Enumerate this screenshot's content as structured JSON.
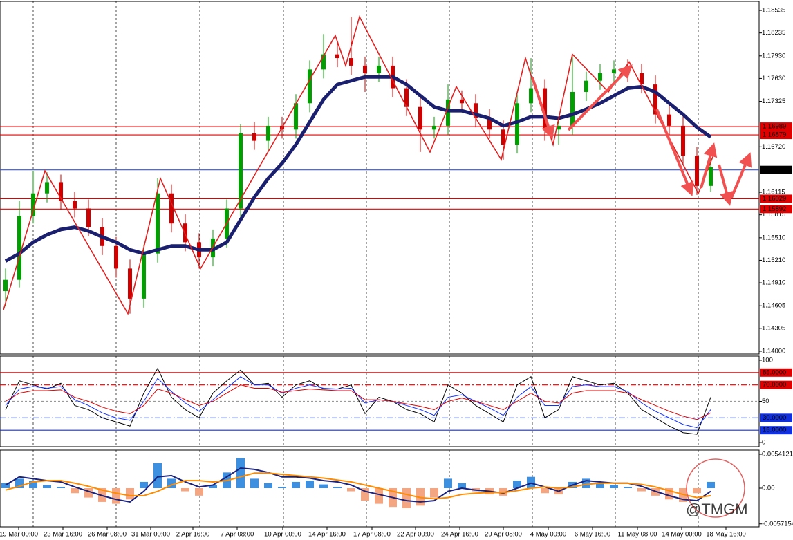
{
  "chart_data": [
    {
      "type": "candlestick",
      "ylim": [
        1.13963,
        1.18655
      ],
      "yticks": [
        1.18535,
        1.18235,
        {
          "value": 1.1793,
          "label": "1.17930"
        },
        {
          "value": 1.1763,
          "label": "1.17630"
        },
        1.17325,
        {
          "value": 1.1672,
          "label": "1.16720"
        },
        1.16115,
        1.15815,
        {
          "value": 1.1551,
          "label": "1.15510"
        },
        {
          "value": 1.1521,
          "label": "1.15210"
        },
        {
          "value": 1.1491,
          "label": "1.14910"
        },
        1.14605,
        1.14305,
        {
          "value": 1.14,
          "label": "1.14000"
        }
      ],
      "up_color": "#00a000",
      "down_color": "#d00000",
      "ohlc": [
        [
          1.148,
          1.151,
          1.146,
          1.1495
        ],
        [
          1.1495,
          1.16,
          1.1485,
          1.158
        ],
        [
          1.158,
          1.164,
          1.157,
          1.161
        ],
        [
          1.161,
          1.1638,
          1.1598,
          1.1625
        ],
        [
          1.1625,
          1.1635,
          1.1588,
          1.16
        ],
        [
          1.16,
          1.1612,
          1.1578,
          1.159
        ],
        [
          1.159,
          1.1602,
          1.1553,
          1.1565
        ],
        [
          1.1565,
          1.1577,
          1.1528,
          1.154
        ],
        [
          1.154,
          1.1552,
          1.1498,
          1.151
        ],
        [
          1.151,
          1.1522,
          1.145,
          1.147
        ],
        [
          1.147,
          1.1542,
          1.1458,
          1.153
        ],
        [
          1.153,
          1.163,
          1.1518,
          1.161
        ],
        [
          1.161,
          1.1622,
          1.1558,
          1.157
        ],
        [
          1.157,
          1.1582,
          1.1533,
          1.1545
        ],
        [
          1.1545,
          1.1557,
          1.151,
          1.1525
        ],
        [
          1.1525,
          1.1562,
          1.1513,
          1.155
        ],
        [
          1.155,
          1.1602,
          1.1538,
          1.159
        ],
        [
          1.159,
          1.1702,
          1.1578,
          1.169
        ],
        [
          1.169,
          1.1705,
          1.1668,
          1.168
        ],
        [
          1.168,
          1.1712,
          1.1668,
          1.17
        ],
        [
          1.17,
          1.1712,
          1.1683,
          1.1695
        ],
        [
          1.1695,
          1.1742,
          1.1683,
          1.173
        ],
        [
          1.173,
          1.1787,
          1.1718,
          1.1775
        ],
        [
          1.1775,
          1.1822,
          1.1763,
          1.1795
        ],
        [
          1.1795,
          1.181,
          1.1778,
          1.179
        ],
        [
          1.179,
          1.1845,
          1.1768,
          1.178
        ],
        [
          1.178,
          1.1792,
          1.1745,
          1.177
        ],
        [
          1.177,
          1.1792,
          1.1758,
          1.178
        ],
        [
          1.178,
          1.1792,
          1.1738,
          1.175
        ],
        [
          1.175,
          1.1762,
          1.1713,
          1.1725
        ],
        [
          1.1725,
          1.1737,
          1.1665,
          1.1695
        ],
        [
          1.1695,
          1.1712,
          1.1683,
          1.17
        ],
        [
          1.17,
          1.1755,
          1.1688,
          1.1735
        ],
        [
          1.1735,
          1.1747,
          1.1718,
          1.173
        ],
        [
          1.173,
          1.1742,
          1.1698,
          1.171
        ],
        [
          1.171,
          1.1722,
          1.1683,
          1.1695
        ],
        [
          1.1695,
          1.1707,
          1.1655,
          1.1675
        ],
        [
          1.1675,
          1.1742,
          1.1663,
          1.173
        ],
        [
          1.173,
          1.179,
          1.1718,
          1.175
        ],
        [
          1.175,
          1.1762,
          1.168,
          1.1695
        ],
        [
          1.1695,
          1.1712,
          1.1675,
          1.17
        ],
        [
          1.17,
          1.1795,
          1.1688,
          1.1745
        ],
        [
          1.1745,
          1.1772,
          1.1733,
          1.176
        ],
        [
          1.176,
          1.1782,
          1.1748,
          1.177
        ],
        [
          1.177,
          1.1787,
          1.1758,
          1.1775
        ],
        [
          1.1775,
          1.1788,
          1.1758,
          1.177
        ],
        [
          1.177,
          1.1782,
          1.1743,
          1.1755
        ],
        [
          1.1755,
          1.1767,
          1.1703,
          1.1715
        ],
        [
          1.1715,
          1.1727,
          1.1688,
          1.17
        ],
        [
          1.17,
          1.1712,
          1.1648,
          1.166
        ],
        [
          1.166,
          1.1672,
          1.1608,
          1.162
        ],
        [
          1.162,
          1.1668,
          1.1612,
          1.1645
        ]
      ],
      "series": [
        {
          "color": "#1a1f6e",
          "values": [
            1.152,
            1.153,
            1.1545,
            1.1555,
            1.1562,
            1.1565,
            1.156,
            1.1552,
            1.1545,
            1.1535,
            1.153,
            1.1535,
            1.154,
            1.154,
            1.1535,
            1.1535,
            1.1545,
            1.1575,
            1.1605,
            1.163,
            1.165,
            1.1675,
            1.1705,
            1.1735,
            1.1755,
            1.176,
            1.1765,
            1.1765,
            1.1765,
            1.1755,
            1.174,
            1.1725,
            1.172,
            1.172,
            1.1715,
            1.171,
            1.17,
            1.1705,
            1.1712,
            1.1712,
            1.171,
            1.1715,
            1.1722,
            1.173,
            1.174,
            1.175,
            1.1752,
            1.1745,
            1.173,
            1.1715,
            1.1698,
            1.1685
          ]
        }
      ],
      "zigzag": {
        "color": "#e02020",
        "x": [
          -0.15,
          2.85,
          8.85,
          11.2,
          14.1,
          23.85,
          24.6,
          25.6,
          30.7,
          32.6,
          35.85,
          37.6,
          39.6,
          41,
          43.6,
          45.1,
          50.1,
          51.35
        ],
        "values": [
          1.1455,
          1.164,
          1.145,
          1.163,
          1.151,
          1.182,
          1.178,
          1.1845,
          1.1665,
          1.1752,
          1.1655,
          1.179,
          1.1675,
          1.1795,
          1.1745,
          1.1785,
          1.161,
          1.1668
        ]
      },
      "levels": [
        {
          "value": 1.16989,
          "color": "#e00000"
        },
        {
          "value": 1.16879,
          "color": "#e00000"
        },
        {
          "value": 1.16413,
          "color": "#3355dd",
          "box": "#000000"
        },
        {
          "value": 1.16029,
          "color": "#e00000"
        },
        {
          "value": 1.15892,
          "color": "#e00000"
        }
      ],
      "xgrid": [
        2,
        8,
        14.05,
        20.1,
        26.1,
        32.1,
        38.1,
        44.1,
        50.1
      ]
    },
    {
      "type": "line",
      "ylim": [
        -5,
        105
      ],
      "yticks": [
        100,
        50,
        0
      ],
      "levels": [
        {
          "value": 85,
          "label": "85.0000",
          "color": "#e00000",
          "style": "solid"
        },
        {
          "value": 70,
          "label": "70.0000",
          "color": "#e00000",
          "style": "dashdot"
        },
        {
          "value": 50,
          "color": "#999999",
          "style": "dashed"
        },
        {
          "value": 30,
          "label": "30.0000",
          "color": "#1030e0",
          "style": "dashdot"
        },
        {
          "value": 15,
          "label": "15.0000",
          "color": "#1030e0",
          "style": "solid"
        }
      ],
      "series": [
        {
          "color": "#000000",
          "values": [
            40,
            75,
            70,
            65,
            72,
            45,
            40,
            30,
            25,
            20,
            60,
            90,
            55,
            40,
            30,
            60,
            75,
            88,
            70,
            72,
            55,
            70,
            75,
            65,
            65,
            70,
            35,
            55,
            50,
            40,
            35,
            25,
            70,
            60,
            45,
            35,
            25,
            70,
            80,
            30,
            40,
            80,
            75,
            70,
            72,
            60,
            40,
            30,
            20,
            12,
            10,
            55
          ]
        },
        {
          "color": "#1030ff",
          "values": [
            45,
            65,
            68,
            66,
            68,
            52,
            45,
            36,
            30,
            27,
            50,
            78,
            62,
            48,
            38,
            52,
            66,
            80,
            70,
            70,
            60,
            66,
            70,
            66,
            65,
            66,
            48,
            52,
            50,
            45,
            40,
            33,
            55,
            58,
            50,
            42,
            33,
            55,
            68,
            45,
            45,
            68,
            70,
            68,
            68,
            62,
            48,
            38,
            30,
            22,
            18,
            40
          ]
        },
        {
          "color": "#e00000",
          "values": [
            50,
            60,
            63,
            63,
            64,
            55,
            50,
            43,
            38,
            35,
            45,
            65,
            60,
            52,
            45,
            50,
            60,
            70,
            66,
            66,
            61,
            63,
            65,
            64,
            63,
            63,
            52,
            52,
            50,
            47,
            44,
            40,
            50,
            54,
            50,
            45,
            40,
            50,
            60,
            50,
            48,
            60,
            63,
            63,
            63,
            60,
            52,
            45,
            38,
            32,
            28,
            36
          ]
        }
      ]
    },
    {
      "type": "bar",
      "ylim": [
        -0.006185,
        0.006075
      ],
      "yticks": [
        0.0054121,
        {
          "value": 0,
          "label": "0.00"
        },
        -0.0057154
      ],
      "color": "#3d8fe0",
      "negative_color": "#f4a582",
      "values": [
        0.0008,
        0.0015,
        0.0012,
        0.0005,
        0.0002,
        -0.0008,
        -0.0015,
        -0.0022,
        -0.0025,
        -0.0018,
        0.001,
        0.004,
        0.0015,
        -0.0005,
        -0.0012,
        0.0005,
        0.0025,
        0.0048,
        0.0015,
        0.0008,
        0.0002,
        0.001,
        0.0012,
        0.0006,
        0.0002,
        -0.0005,
        -0.002,
        -0.0025,
        -0.003,
        -0.0032,
        -0.0028,
        -0.0015,
        0.0015,
        0.0008,
        -0.0005,
        -0.001,
        -0.0012,
        0.0012,
        0.0018,
        -0.0008,
        -0.001,
        0.001,
        0.0015,
        0.0008,
        0.0005,
        0.0002,
        -0.0005,
        -0.0012,
        -0.0018,
        -0.0022,
        -0.0008,
        0.001
      ],
      "series": [
        {
          "color": "#1a237e",
          "values": [
            0.0005,
            0.0018,
            0.0015,
            0.0012,
            0.001,
            0.0002,
            -0.0005,
            -0.0012,
            -0.0018,
            -0.0022,
            -0.0005,
            0.0018,
            0.002,
            0.001,
            0.0002,
            0.0005,
            0.0018,
            0.0032,
            0.003,
            0.0025,
            0.0018,
            0.0018,
            0.0016,
            0.0012,
            0.001,
            0.0005,
            -0.0005,
            -0.001,
            -0.0015,
            -0.002,
            -0.0022,
            -0.002,
            -0.0005,
            0.0,
            -0.0003,
            -0.0005,
            -0.0008,
            0.0,
            0.0008,
            0.0002,
            -0.0005,
            0.0005,
            0.0012,
            0.001,
            0.0008,
            0.0008,
            0.0003,
            -0.0005,
            -0.0012,
            -0.0018,
            -0.002,
            -0.0005
          ]
        },
        {
          "color": "#ff8c00",
          "values": [
            -0.0003,
            0.0003,
            0.001,
            0.0012,
            0.0012,
            0.0008,
            0.0003,
            -0.0003,
            -0.0008,
            -0.0012,
            -0.0012,
            -0.0005,
            0.0005,
            0.0012,
            0.0012,
            0.001,
            0.0012,
            0.0018,
            0.0024,
            0.0024,
            0.0022,
            0.002,
            0.0018,
            0.0016,
            0.0013,
            0.001,
            0.0005,
            0.0,
            -0.0005,
            -0.001,
            -0.0015,
            -0.0017,
            -0.0015,
            -0.001,
            -0.0008,
            -0.0007,
            -0.0007,
            -0.0004,
            0.0,
            0.0002,
            0.0,
            0.0002,
            0.0006,
            0.0008,
            0.0008,
            0.0008,
            0.0006,
            0.0002,
            -0.0004,
            -0.001,
            -0.0015,
            -0.0012
          ]
        }
      ],
      "xticks": [
        {
          "value": 0.95,
          "label": "19 Mar 00:00"
        },
        {
          "value": 4.15,
          "label": "23 Mar 16:00"
        },
        {
          "value": 7.35,
          "label": "26 Mar 08:00"
        },
        {
          "value": 10.5,
          "label": "31 Mar 00:00"
        },
        {
          "value": 13.55,
          "label": "2 Apr 16:00"
        },
        {
          "value": 16.75,
          "label": "7 Apr 08:00"
        },
        {
          "value": 20.05,
          "label": "10 Apr 00:00"
        },
        {
          "value": 23.25,
          "label": "14 Apr 16:00"
        },
        {
          "value": 26.5,
          "label": "17 Apr 08:00"
        },
        {
          "value": 29.65,
          "label": "22 Apr 00:00"
        },
        {
          "value": 32.85,
          "label": "24 Apr 16:00"
        },
        {
          "value": 36,
          "label": "29 Apr 08:00"
        },
        {
          "value": 39.25,
          "label": "4 May 00:00"
        },
        {
          "value": 42.45,
          "label": "6 May 16:00"
        },
        {
          "value": 45.7,
          "label": "11 May 08:00"
        },
        {
          "value": 48.9,
          "label": "14 May 00:00"
        },
        {
          "value": 52.1,
          "label": "18 May 16:00"
        }
      ]
    }
  ],
  "watermark": "@TMGM"
}
